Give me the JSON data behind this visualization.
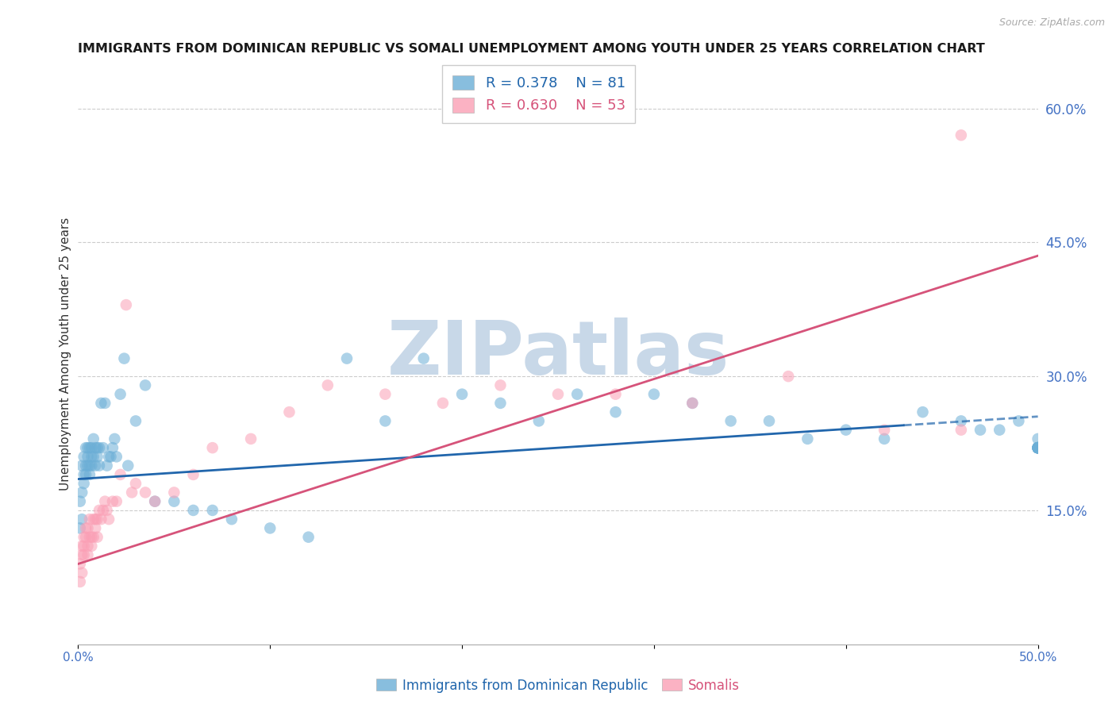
{
  "title": "IMMIGRANTS FROM DOMINICAN REPUBLIC VS SOMALI UNEMPLOYMENT AMONG YOUTH UNDER 25 YEARS CORRELATION CHART",
  "source": "Source: ZipAtlas.com",
  "ylabel": "Unemployment Among Youth under 25 years",
  "ytick_labels": [
    "15.0%",
    "30.0%",
    "45.0%",
    "60.0%"
  ],
  "ytick_values": [
    0.15,
    0.3,
    0.45,
    0.6
  ],
  "legend_blue_label": "Immigrants from Dominican Republic",
  "legend_pink_label": "Somalis",
  "legend_blue_R": "R = 0.378",
  "legend_blue_N": "N = 81",
  "legend_pink_R": "R = 0.630",
  "legend_pink_N": "N = 53",
  "blue_color": "#6baed6",
  "pink_color": "#fa9fb5",
  "trend_blue_color": "#2166ac",
  "trend_pink_color": "#d6537a",
  "watermark": "ZIPatlas",
  "watermark_color": "#c8d8e8",
  "blue_x": [
    0.001,
    0.001,
    0.002,
    0.002,
    0.002,
    0.003,
    0.003,
    0.003,
    0.004,
    0.004,
    0.004,
    0.005,
    0.005,
    0.005,
    0.006,
    0.006,
    0.006,
    0.007,
    0.007,
    0.007,
    0.008,
    0.008,
    0.009,
    0.009,
    0.01,
    0.01,
    0.011,
    0.011,
    0.012,
    0.013,
    0.014,
    0.015,
    0.016,
    0.017,
    0.018,
    0.019,
    0.02,
    0.022,
    0.024,
    0.026,
    0.03,
    0.035,
    0.04,
    0.05,
    0.06,
    0.07,
    0.08,
    0.1,
    0.12,
    0.14,
    0.16,
    0.18,
    0.2,
    0.22,
    0.24,
    0.26,
    0.28,
    0.3,
    0.32,
    0.34,
    0.36,
    0.38,
    0.4,
    0.42,
    0.44,
    0.46,
    0.47,
    0.48,
    0.49,
    0.5,
    0.5,
    0.5,
    0.5,
    0.5,
    0.5,
    0.5,
    0.5,
    0.5,
    0.5,
    0.5,
    0.5
  ],
  "blue_y": [
    0.13,
    0.16,
    0.14,
    0.17,
    0.2,
    0.18,
    0.21,
    0.19,
    0.19,
    0.22,
    0.2,
    0.21,
    0.2,
    0.22,
    0.2,
    0.22,
    0.19,
    0.22,
    0.21,
    0.2,
    0.23,
    0.21,
    0.22,
    0.2,
    0.21,
    0.22,
    0.22,
    0.2,
    0.27,
    0.22,
    0.27,
    0.2,
    0.21,
    0.21,
    0.22,
    0.23,
    0.21,
    0.28,
    0.32,
    0.2,
    0.25,
    0.29,
    0.16,
    0.16,
    0.15,
    0.15,
    0.14,
    0.13,
    0.12,
    0.32,
    0.25,
    0.32,
    0.28,
    0.27,
    0.25,
    0.28,
    0.26,
    0.28,
    0.27,
    0.25,
    0.25,
    0.23,
    0.24,
    0.23,
    0.26,
    0.25,
    0.24,
    0.24,
    0.25,
    0.23,
    0.22,
    0.22,
    0.22,
    0.22,
    0.22,
    0.22,
    0.22,
    0.22,
    0.22,
    0.22,
    0.22
  ],
  "pink_x": [
    0.001,
    0.001,
    0.002,
    0.002,
    0.002,
    0.003,
    0.003,
    0.003,
    0.004,
    0.004,
    0.005,
    0.005,
    0.005,
    0.006,
    0.006,
    0.007,
    0.007,
    0.008,
    0.008,
    0.009,
    0.009,
    0.01,
    0.01,
    0.011,
    0.012,
    0.013,
    0.014,
    0.015,
    0.016,
    0.018,
    0.02,
    0.022,
    0.025,
    0.028,
    0.03,
    0.035,
    0.04,
    0.05,
    0.06,
    0.07,
    0.09,
    0.11,
    0.13,
    0.16,
    0.19,
    0.22,
    0.25,
    0.28,
    0.32,
    0.37,
    0.42,
    0.46,
    0.46
  ],
  "pink_y": [
    0.07,
    0.09,
    0.1,
    0.08,
    0.11,
    0.1,
    0.12,
    0.11,
    0.12,
    0.13,
    0.11,
    0.13,
    0.1,
    0.12,
    0.14,
    0.12,
    0.11,
    0.14,
    0.12,
    0.13,
    0.14,
    0.14,
    0.12,
    0.15,
    0.14,
    0.15,
    0.16,
    0.15,
    0.14,
    0.16,
    0.16,
    0.19,
    0.38,
    0.17,
    0.18,
    0.17,
    0.16,
    0.17,
    0.19,
    0.22,
    0.23,
    0.26,
    0.29,
    0.28,
    0.27,
    0.29,
    0.28,
    0.28,
    0.27,
    0.3,
    0.24,
    0.57,
    0.24
  ],
  "xlim": [
    0.0,
    0.5
  ],
  "ylim": [
    0.0,
    0.65
  ],
  "blue_trend_x0": 0.0,
  "blue_trend_y0": 0.185,
  "blue_trend_x1": 0.5,
  "blue_trend_y1": 0.255,
  "blue_trend_solid_end": 0.43,
  "blue_trend_solid_y_end": 0.245,
  "pink_trend_x0": 0.0,
  "pink_trend_y0": 0.09,
  "pink_trend_x1": 0.5,
  "pink_trend_y1": 0.435
}
